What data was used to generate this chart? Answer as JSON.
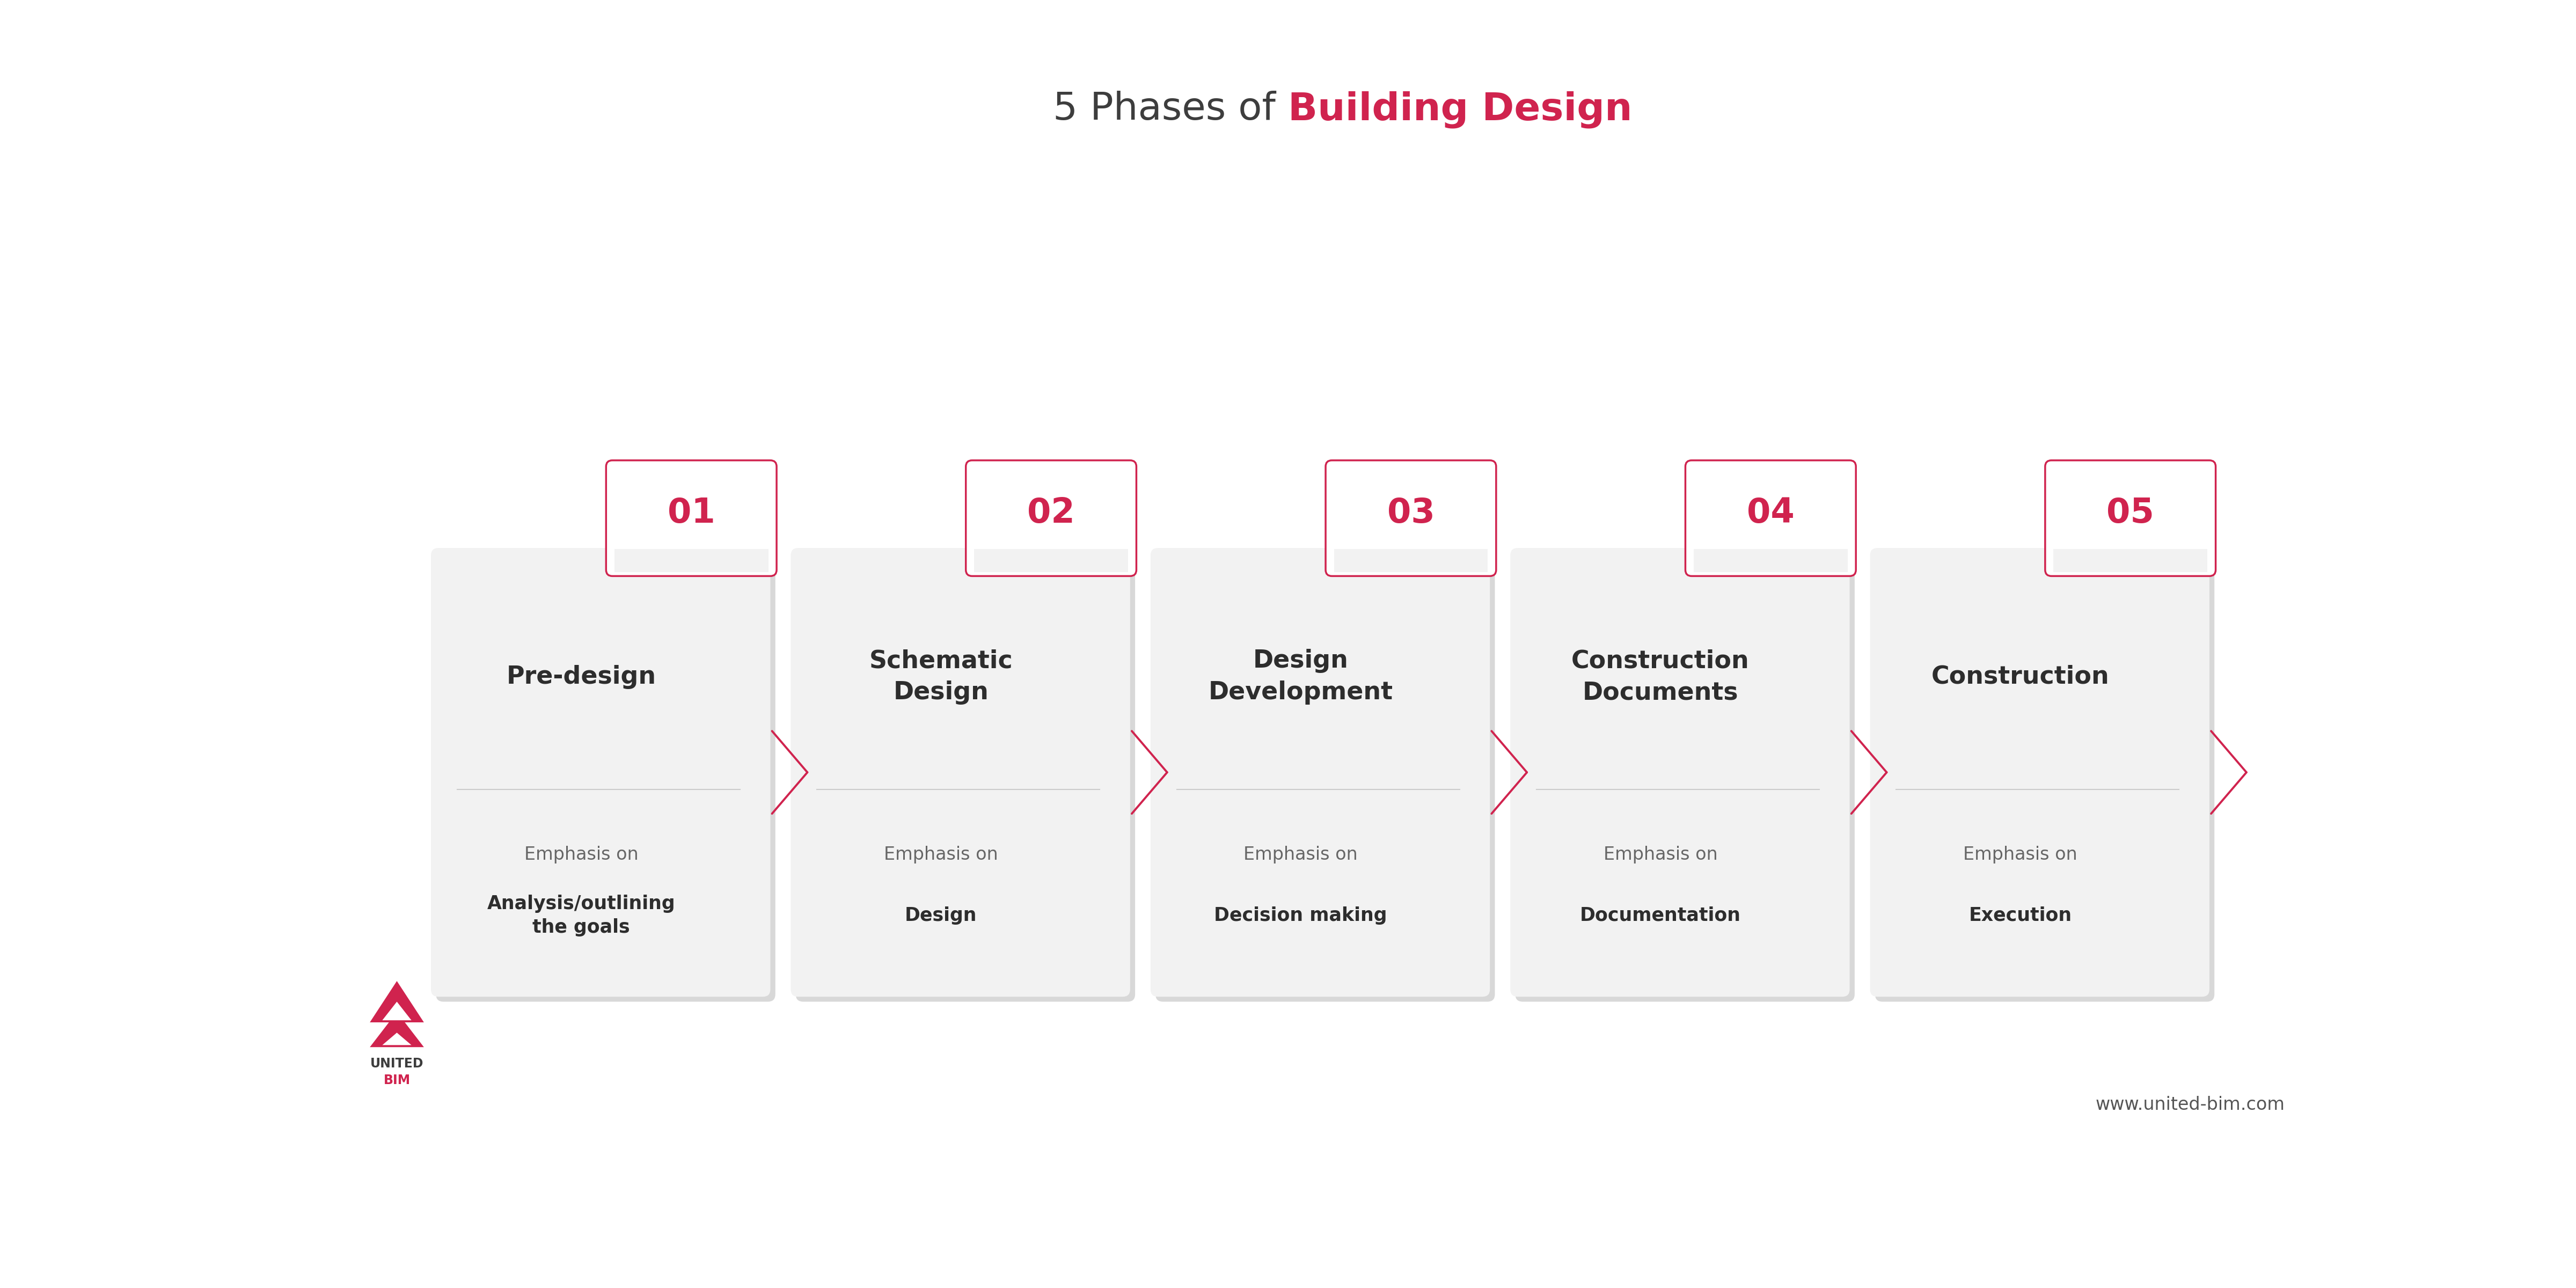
{
  "title_part1": "5 Phases of ",
  "title_part2": "Building Design",
  "title_color1": "#3d3d3d",
  "title_color2": "#d0234e",
  "title_fontsize": 52,
  "bg_color": "#ffffff",
  "card_bg": "#f2f2f2",
  "card_border": "#d0234e",
  "accent_color": "#d0234e",
  "phases": [
    {
      "number": "01",
      "title": "Pre-design",
      "emphasis_normal": "Emphasis on",
      "emphasis_bold": "Analysis/outlining\nthe goals"
    },
    {
      "number": "02",
      "title": "Schematic\nDesign",
      "emphasis_normal": "Emphasis on",
      "emphasis_bold": "Design"
    },
    {
      "number": "03",
      "title": "Design\nDevelopment",
      "emphasis_normal": "Emphasis on",
      "emphasis_bold": "Decision making"
    },
    {
      "number": "04",
      "title": "Construction\nDocuments",
      "emphasis_normal": "Emphasis on",
      "emphasis_bold": "Documentation"
    },
    {
      "number": "05",
      "title": "Construction",
      "emphasis_normal": "Emphasis on",
      "emphasis_bold": "Execution"
    }
  ],
  "footer_url": "www.united-bim.com",
  "footer_color": "#555555",
  "logo_text1": "UNITED",
  "logo_text2": "BIM",
  "logo_color1": "#3d3d3d",
  "logo_color2": "#d0234e"
}
